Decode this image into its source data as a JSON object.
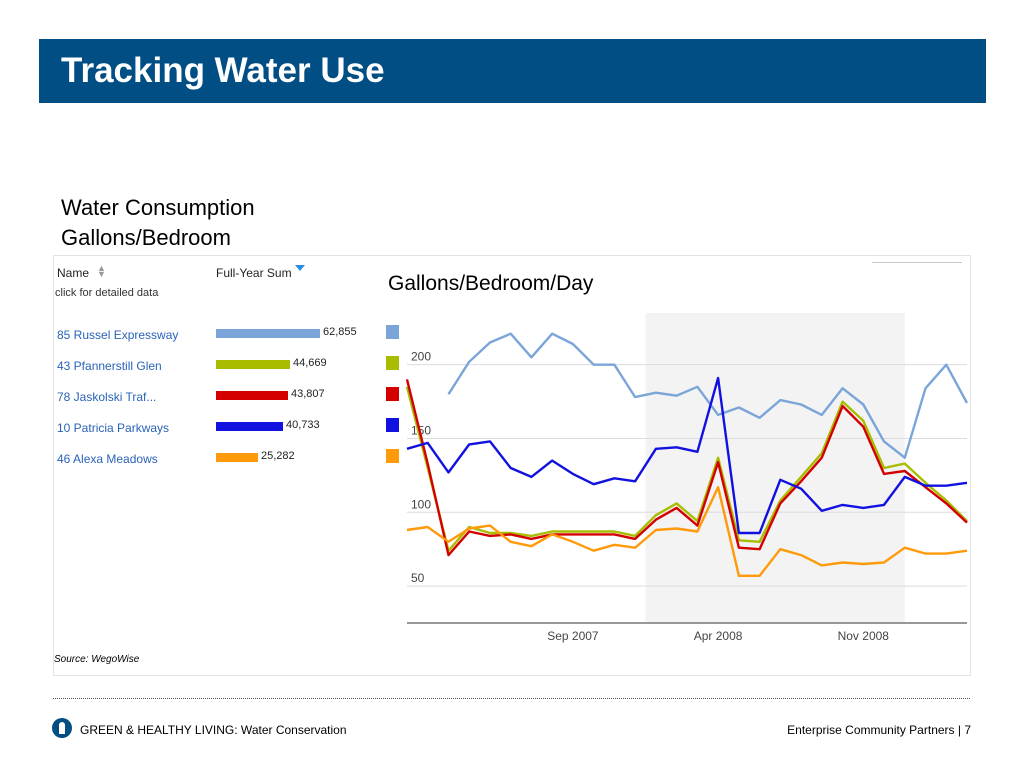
{
  "header": {
    "title": "Tracking Water Use"
  },
  "subtitle": {
    "line1": "Water Consumption",
    "line2": "Gallons/Bedroom"
  },
  "table": {
    "col_name": "Name",
    "col_sum": "Full-Year Sum",
    "hint": "click for detailed data",
    "rows": [
      {
        "name": "85 Russel Expressway",
        "value": 62855,
        "value_label": "62,855",
        "color": "#7ba5d9"
      },
      {
        "name": "43 Pfannerstill Glen",
        "value": 44669,
        "value_label": "44,669",
        "color": "#a8bd00"
      },
      {
        "name": "78 Jaskolski Traf...",
        "value": 43807,
        "value_label": "43,807",
        "color": "#d40000"
      },
      {
        "name": "10 Patricia Parkways",
        "value": 40733,
        "value_label": "40,733",
        "color": "#1212e0"
      },
      {
        "name": "46 Alexa Meadows",
        "value": 25282,
        "value_label": "25,282",
        "color": "#ff9a0a"
      }
    ]
  },
  "chart_data": {
    "type": "line",
    "title": "Gallons/Bedroom/Day",
    "yticks": [
      50,
      100,
      150,
      200
    ],
    "ylim": [
      25,
      235
    ],
    "xticks": [
      {
        "label": "Sep 2007",
        "index": 8
      },
      {
        "label": "Apr 2008",
        "index": 15
      },
      {
        "label": "Nov 2008",
        "index": 22
      }
    ],
    "shaded_range": [
      11.5,
      24
    ],
    "grid": true,
    "series": [
      {
        "name": "85 Russel Expressway",
        "color": "#7ba5d9",
        "start": 2,
        "values": [
          180,
          202,
          215,
          221,
          205,
          221,
          214,
          200,
          200,
          178,
          181,
          179,
          185,
          166,
          171,
          164,
          176,
          173,
          166,
          184,
          173,
          148,
          137,
          184,
          200,
          174
        ]
      },
      {
        "name": "43 Pfannerstill Glen",
        "color": "#a8bd00",
        "start": 0,
        "values": [
          185,
          130,
          74,
          90,
          86,
          86,
          84,
          87,
          87,
          87,
          87,
          84,
          98,
          106,
          94,
          137,
          81,
          80,
          108,
          124,
          140,
          175,
          162,
          130,
          133,
          120,
          108,
          94
        ]
      },
      {
        "name": "78 Jaskolski Traf...",
        "color": "#d40000",
        "start": 0,
        "values": [
          190,
          133,
          71,
          87,
          84,
          85,
          82,
          85,
          85,
          85,
          85,
          82,
          95,
          103,
          91,
          134,
          76,
          75,
          106,
          121,
          137,
          172,
          158,
          126,
          128,
          117,
          106,
          93
        ]
      },
      {
        "name": "10 Patricia Parkways",
        "color": "#1212e0",
        "start": 0,
        "values": [
          143,
          147,
          127,
          146,
          148,
          130,
          124,
          135,
          126,
          119,
          123,
          121,
          143,
          144,
          141,
          191,
          86,
          86,
          122,
          116,
          101,
          105,
          103,
          105,
          124,
          118,
          118,
          120
        ]
      },
      {
        "name": "46 Alexa Meadows",
        "color": "#ff9a0a",
        "start": 0,
        "values": [
          88,
          90,
          80,
          89,
          91,
          80,
          77,
          85,
          80,
          74,
          78,
          76,
          88,
          89,
          87,
          117,
          57,
          57,
          75,
          71,
          64,
          66,
          65,
          66,
          76,
          72,
          72,
          74
        ]
      }
    ]
  },
  "source": "Source: WegoWise",
  "footer": {
    "left": "GREEN & HEALTHY LIVING: Water Conservation",
    "right": "Enterprise Community Partners | 7"
  }
}
